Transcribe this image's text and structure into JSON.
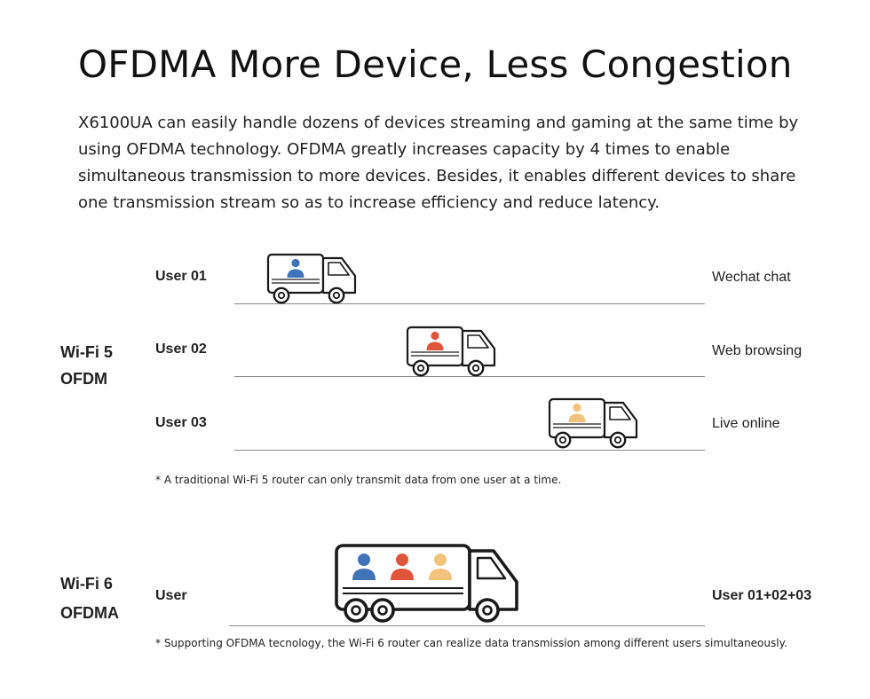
{
  "title": "OFDMA More Device, Less Congestion",
  "intro": "X6100UA can easily handle dozens of devices streaming and gaming at the same time by using OFDMA technology. OFDMA greatly increases capacity by 4 times to enable simultaneous transmission to more devices. Besides, it enables different devices to share one transmission stream so as to increase efficiency and reduce latency.",
  "wifi5": {
    "label_line1": "Wi-Fi 5",
    "label_line2": "OFDM",
    "rows": [
      {
        "user": "User 01",
        "usage": "Wechat chat",
        "person_icon": "person-icon",
        "color": "#3f74b8"
      },
      {
        "user": "User 02",
        "usage": "Web browsing",
        "person_icon": "person-icon",
        "color": "#e0553a"
      },
      {
        "user": "User 03",
        "usage": "Live online",
        "person_icon": "person-icon",
        "color": "#f3c27c"
      }
    ],
    "footnote": "*  A traditional Wi-Fi 5 router can only transmit data from one user at a time."
  },
  "wifi6": {
    "label_line1": "Wi-Fi 6",
    "label_line2": "OFDMA",
    "user": "User",
    "usage": "User 01+02+03",
    "colors": [
      "#3f74b8",
      "#e0553a",
      "#f3c27c"
    ],
    "footnote": "*  Supporting OFDMA tecnology, the Wi-Fi 6 router can realize data transmission among different users simultaneously."
  }
}
